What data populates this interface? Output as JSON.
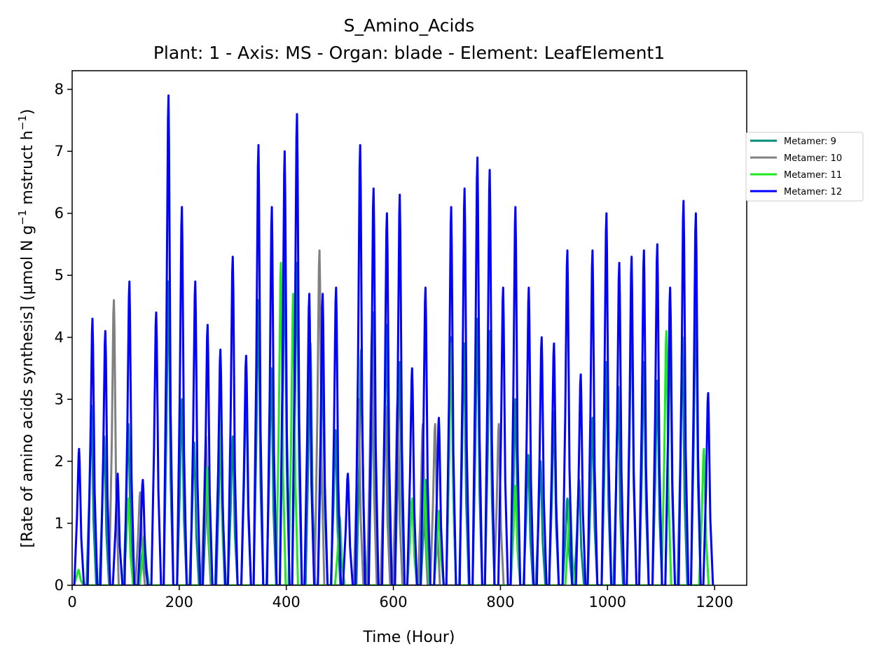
{
  "chart_data": {
    "type": "line",
    "title": "S_Amino_Acids",
    "subtitle": "Plant: 1 - Axis: MS - Organ: blade - Element: LeafElement1",
    "xlabel": "Time (Hour)",
    "ylabel_text": "[Rate of amino acids synthesis] (µmol N g",
    "ylabel_sup1": "−1",
    "ylabel_mid": " mstruct h",
    "ylabel_sup2": "−1",
    "ylabel_end": ")",
    "xlim": [
      0,
      1260
    ],
    "ylim": [
      0,
      8.3
    ],
    "xticks": [
      0,
      200,
      400,
      600,
      800,
      1000,
      1200
    ],
    "xtick_labels": [
      "0",
      "200",
      "400",
      "600",
      "800",
      "1000",
      "1200"
    ],
    "yticks": [
      0,
      1,
      2,
      3,
      4,
      5,
      6,
      7,
      8
    ],
    "ytick_labels": [
      "0",
      "1",
      "2",
      "3",
      "4",
      "5",
      "6",
      "7",
      "8"
    ],
    "grid": false,
    "legend_position": "right, outside plot",
    "series": [
      {
        "name": "Metamer: 9",
        "color": "#008b7a",
        "peaks": [
          [
            36,
            2.9
          ],
          [
            60,
            2.4
          ],
          [
            105,
            2.6
          ],
          [
            133,
            0.7
          ],
          [
            180,
            4.9
          ],
          [
            205,
            3.0
          ],
          [
            228,
            2.3
          ],
          [
            253,
            1.9
          ],
          [
            278,
            2.9
          ],
          [
            300,
            2.4
          ],
          [
            325,
            3.2
          ],
          [
            348,
            4.6
          ],
          [
            372,
            3.5
          ],
          [
            397,
            5.3
          ],
          [
            420,
            5.2
          ],
          [
            445,
            3.9
          ],
          [
            468,
            3.6
          ],
          [
            492,
            2.5
          ],
          [
            540,
            3.8
          ],
          [
            563,
            4.4
          ],
          [
            587,
            4.2
          ],
          [
            612,
            3.6
          ],
          [
            660,
            1.7
          ],
          [
            708,
            4.0
          ],
          [
            732,
            3.9
          ],
          [
            757,
            4.3
          ],
          [
            780,
            4.1
          ],
          [
            828,
            3.0
          ],
          [
            852,
            2.1
          ],
          [
            875,
            2.0
          ],
          [
            900,
            2.8
          ],
          [
            925,
            1.4
          ],
          [
            947,
            1.7
          ],
          [
            972,
            2.7
          ],
          [
            998,
            3.6
          ],
          [
            1020,
            3.2
          ],
          [
            1045,
            4.6
          ],
          [
            1068,
            3.6
          ],
          [
            1093,
            3.3
          ],
          [
            1117,
            4.1
          ],
          [
            1140,
            4.0
          ],
          [
            1165,
            4.6
          ]
        ]
      },
      {
        "name": "Metamer: 10",
        "color": "#808080",
        "peaks": [
          [
            78,
            4.6
          ],
          [
            127,
            1.5
          ],
          [
            250,
            2.4
          ],
          [
            462,
            5.4
          ],
          [
            535,
            3.0
          ],
          [
            560,
            4.1
          ],
          [
            585,
            2.9
          ],
          [
            608,
            3.0
          ],
          [
            655,
            2.6
          ],
          [
            678,
            2.6
          ],
          [
            797,
            2.6
          ]
        ]
      },
      {
        "name": "Metamer: 11",
        "color": "#1ee81e",
        "peaks": [
          [
            12,
            0.25
          ],
          [
            105,
            1.4
          ],
          [
            135,
            0.8
          ],
          [
            252,
            1.9
          ],
          [
            276,
            3.0
          ],
          [
            390,
            5.2
          ],
          [
            413,
            4.7
          ],
          [
            500,
            1.1
          ],
          [
            635,
            1.4
          ],
          [
            658,
            1.7
          ],
          [
            685,
            1.2
          ],
          [
            708,
            3.9
          ],
          [
            828,
            1.6
          ],
          [
            930,
            1.4
          ],
          [
            1110,
            4.1
          ],
          [
            1180,
            2.2
          ]
        ]
      },
      {
        "name": "Metamer: 12",
        "color": "#0000ff",
        "peaks": [
          [
            13,
            2.2
          ],
          [
            38,
            4.3
          ],
          [
            62,
            4.1
          ],
          [
            85,
            1.8
          ],
          [
            107,
            4.9
          ],
          [
            132,
            1.7
          ],
          [
            157,
            4.4
          ],
          [
            180,
            7.9
          ],
          [
            205,
            6.1
          ],
          [
            230,
            4.9
          ],
          [
            253,
            4.2
          ],
          [
            277,
            3.8
          ],
          [
            300,
            5.3
          ],
          [
            325,
            3.7
          ],
          [
            348,
            7.1
          ],
          [
            373,
            6.1
          ],
          [
            397,
            7.0
          ],
          [
            420,
            7.6
          ],
          [
            443,
            4.7
          ],
          [
            468,
            4.7
          ],
          [
            493,
            4.8
          ],
          [
            515,
            1.8
          ],
          [
            538,
            7.1
          ],
          [
            563,
            6.4
          ],
          [
            588,
            6.0
          ],
          [
            612,
            6.3
          ],
          [
            635,
            3.5
          ],
          [
            660,
            4.8
          ],
          [
            685,
            2.7
          ],
          [
            708,
            6.1
          ],
          [
            733,
            6.4
          ],
          [
            757,
            6.9
          ],
          [
            780,
            6.7
          ],
          [
            805,
            4.8
          ],
          [
            828,
            6.1
          ],
          [
            853,
            4.8
          ],
          [
            877,
            4.0
          ],
          [
            900,
            3.9
          ],
          [
            925,
            5.4
          ],
          [
            950,
            3.4
          ],
          [
            972,
            5.4
          ],
          [
            998,
            6.0
          ],
          [
            1022,
            5.2
          ],
          [
            1045,
            5.3
          ],
          [
            1068,
            5.4
          ],
          [
            1093,
            5.5
          ],
          [
            1117,
            4.8
          ],
          [
            1142,
            6.2
          ],
          [
            1165,
            6.0
          ],
          [
            1188,
            3.1
          ]
        ]
      }
    ]
  }
}
